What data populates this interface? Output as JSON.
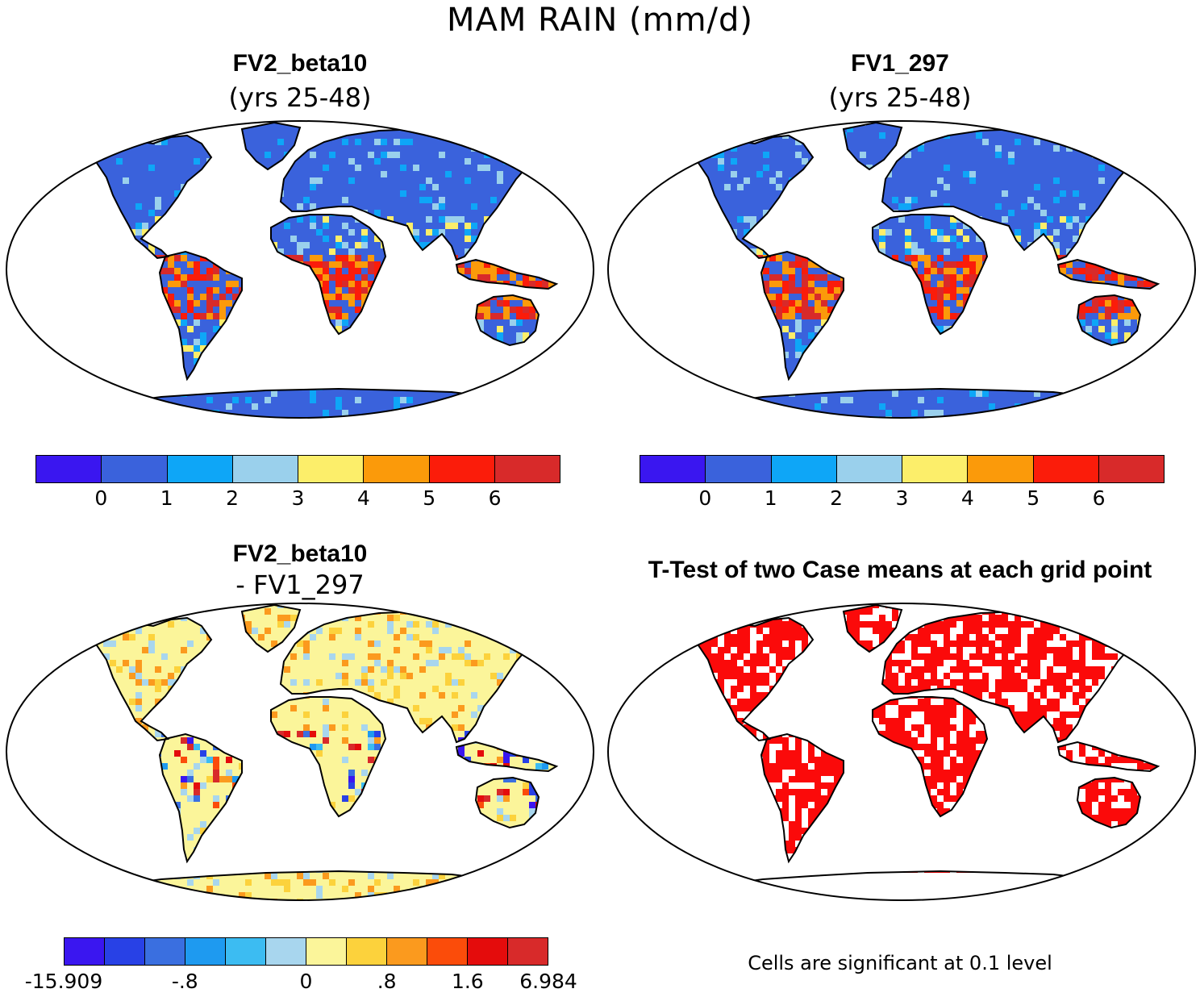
{
  "title": "MAM RAIN (mm/d)",
  "panels": [
    {
      "title": "FV2_beta10",
      "subtitle": "(yrs 25-48)"
    },
    {
      "title": "FV1_297",
      "subtitle": "(yrs 25-48)"
    },
    {
      "title": "FV2_beta10",
      "subtitle": "- FV1_297"
    },
    {
      "title": "T-Test of two Case means at each grid point",
      "subtitle": ""
    }
  ],
  "colorbars": {
    "rain": {
      "colors": [
        "#3a16f0",
        "#3a62dc",
        "#0ea6f7",
        "#9ad0ec",
        "#fcee6a",
        "#fb9a0a",
        "#fb1c0a",
        "#d82a2a"
      ],
      "labels": [
        "0",
        "1",
        "2",
        "3",
        "4",
        "5",
        "6"
      ]
    },
    "diff": {
      "colors": [
        "#3a16f0",
        "#2841e6",
        "#3a6fe0",
        "#1e9af0",
        "#3cbcf2",
        "#a8d6ee",
        "#fbf59a",
        "#fcd23c",
        "#fb9a1e",
        "#fb4c0a",
        "#e40c0c",
        "#d82a2a"
      ],
      "labels": [
        "-15.909",
        "-.8",
        "0",
        ".8",
        "1.6",
        "6.984"
      ]
    }
  },
  "footnote": "Cells are significant at 0.1 level",
  "map_colors": {
    "land_base": "#3a62dc",
    "diff_base": "#fbf59a",
    "ttest": "#fb0a0a"
  }
}
